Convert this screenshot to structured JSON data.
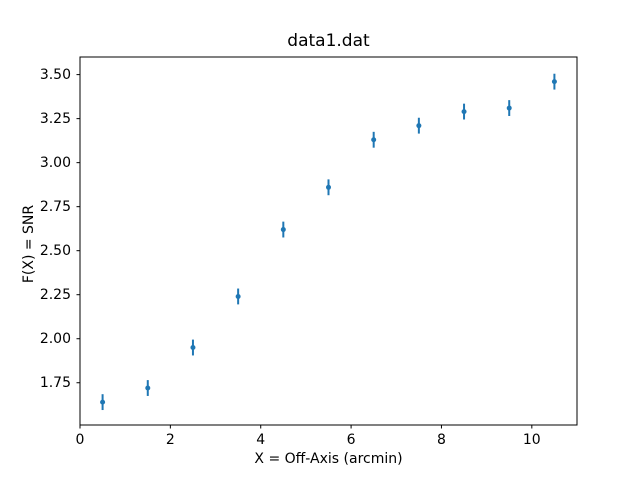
{
  "figure": {
    "background_color": "#ffffff"
  },
  "chart_data": {
    "type": "scatter",
    "title": "data1.dat",
    "xlabel": "X = Off-Axis (arcmin)",
    "ylabel": "F(X) = SNR",
    "x": [
      0.5,
      1.5,
      2.5,
      3.5,
      4.5,
      5.5,
      6.5,
      7.5,
      8.5,
      9.5,
      10.5
    ],
    "y": [
      1.64,
      1.72,
      1.95,
      2.24,
      2.62,
      2.86,
      3.13,
      3.21,
      3.29,
      3.31,
      3.46
    ],
    "yerr": [
      0.045,
      0.045,
      0.045,
      0.045,
      0.045,
      0.045,
      0.045,
      0.045,
      0.045,
      0.045,
      0.045
    ],
    "xlim": [
      0,
      11
    ],
    "ylim": [
      1.51,
      3.6
    ],
    "xticks": {
      "values": [
        0,
        2,
        4,
        6,
        8,
        10
      ],
      "labels": [
        "0",
        "2",
        "4",
        "6",
        "8",
        "10"
      ]
    },
    "yticks": {
      "values": [
        1.75,
        2.0,
        2.25,
        2.5,
        2.75,
        3.0,
        3.25,
        3.5
      ],
      "labels": [
        "1.75",
        "2.00",
        "2.25",
        "2.50",
        "2.75",
        "3.00",
        "3.25",
        "3.50"
      ]
    },
    "marker_color": "#1f77b4",
    "axis_color": "#000000",
    "grid": false,
    "legend_position": "none"
  }
}
